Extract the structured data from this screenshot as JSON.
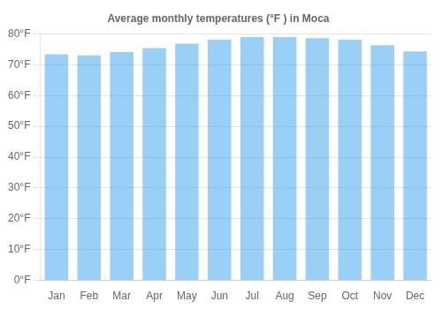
{
  "chart_data": {
    "type": "bar",
    "title": "Average monthly temperatures (°F ) in Moca",
    "categories": [
      "Jan",
      "Feb",
      "Mar",
      "Apr",
      "May",
      "Jun",
      "Jul",
      "Aug",
      "Sep",
      "Oct",
      "Nov",
      "Dec"
    ],
    "values": [
      73.4,
      73.0,
      74.1,
      75.4,
      76.8,
      78.1,
      79.0,
      79.0,
      78.6,
      78.1,
      76.3,
      74.3
    ],
    "ylim": [
      0,
      80
    ],
    "yticks": [
      {
        "value": 0,
        "label": "0°F"
      },
      {
        "value": 10,
        "label": "10°F"
      },
      {
        "value": 20,
        "label": "20°F"
      },
      {
        "value": 30,
        "label": "30°F"
      },
      {
        "value": 40,
        "label": "40°F"
      },
      {
        "value": 50,
        "label": "50°F"
      },
      {
        "value": 60,
        "label": "60°F"
      },
      {
        "value": 70,
        "label": "70°F"
      },
      {
        "value": 80,
        "label": "80°F"
      }
    ],
    "grid": true
  }
}
